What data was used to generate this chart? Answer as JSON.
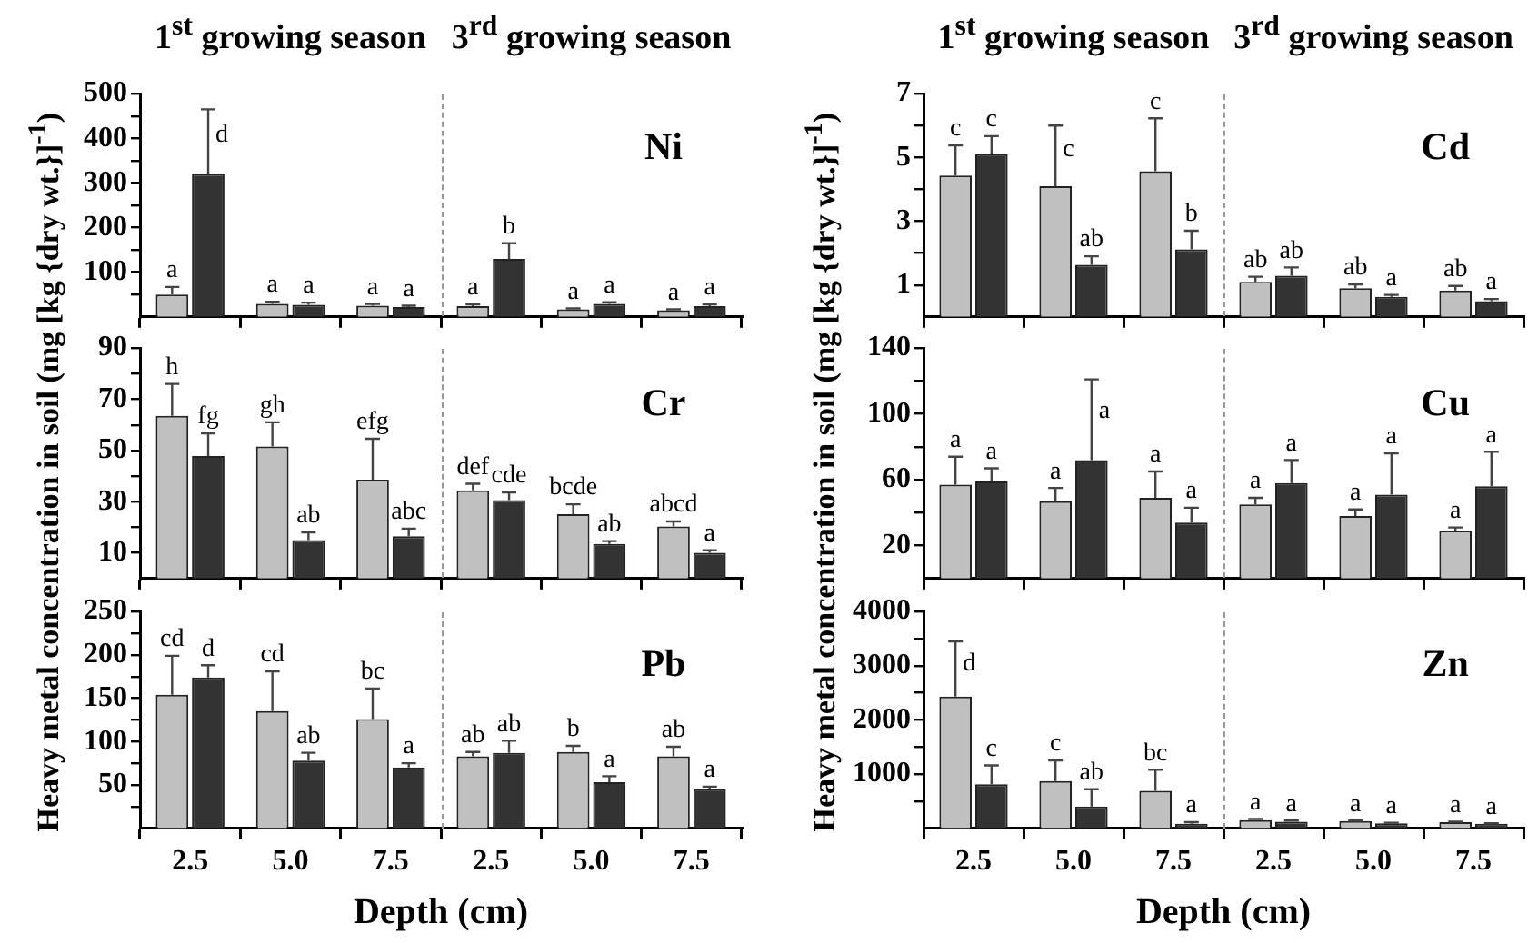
{
  "chart_data": [
    {
      "type": "bar",
      "title": "Ni",
      "annotations": [
        "1$^{st}$ growing season",
        "3$^{rd}$ growing season"
      ],
      "categories": [
        "2.5",
        "5.0",
        "7.5",
        "2.5",
        "5.0",
        "7.5"
      ],
      "ylim": [
        0,
        500
      ],
      "yticks": [
        {
          "value": 50,
          "label": null
        },
        100,
        {
          "value": 150,
          "label": null
        },
        200,
        {
          "value": 250,
          "label": null
        },
        300,
        {
          "value": 350,
          "label": null
        },
        400,
        {
          "value": 450,
          "label": null
        },
        500
      ],
      "tick_labels": "y",
      "series": [
        {
          "color": "#c0c0c0",
          "values": [
            50,
            29,
            25,
            24,
            17,
            15
          ],
          "errors": [
            [
              50,
              67
            ],
            [
              29,
              34
            ],
            [
              25,
              29
            ],
            [
              24,
              28
            ],
            [
              17,
              19
            ],
            [
              15,
              17
            ]
          ],
          "value_labels": [
            "a",
            "a",
            "a",
            "a",
            "a",
            "a"
          ]
        },
        {
          "color": "#333333",
          "values": [
            320,
            27,
            22,
            130,
            29,
            24
          ],
          "errors": [
            [
              320,
              465
            ],
            [
              27,
              32
            ],
            [
              22,
              25
            ],
            [
              130,
              165
            ],
            [
              29,
              33
            ],
            [
              24,
              28
            ]
          ],
          "value_labels": [
            "d",
            "a",
            "a",
            "b",
            "a",
            "a"
          ]
        }
      ]
    },
    {
      "type": "bar",
      "title": "Cd",
      "annotations": [
        "1$^{st}$ growing season",
        "3$^{rd}$ growing season"
      ],
      "categories": [
        "2.5",
        "5.0",
        "7.5",
        "2.5",
        "5.0",
        "7.5"
      ],
      "ylim": [
        0,
        7
      ],
      "yticks": [
        1,
        {
          "value": 2,
          "label": null
        },
        3,
        {
          "value": 4,
          "label": null
        },
        5,
        {
          "value": 6,
          "label": null
        },
        7
      ],
      "tick_labels": "y",
      "series": [
        {
          "color": "#c0c0c0",
          "values": [
            4.43,
            4.1,
            4.57,
            1.1,
            0.9,
            0.83
          ],
          "errors": [
            [
              4.43,
              5.38
            ],
            [
              4.1,
              6.0
            ],
            [
              4.57,
              6.23
            ],
            [
              1.1,
              1.26
            ],
            [
              0.9,
              1.02
            ],
            [
              0.83,
              0.97
            ]
          ],
          "value_labels": [
            "c",
            "c",
            "c",
            "ab",
            "ab",
            "ab"
          ]
        },
        {
          "color": "#333333",
          "values": [
            5.1,
            1.63,
            2.12,
            1.29,
            0.63,
            0.49
          ],
          "errors": [
            [
              5.1,
              5.67
            ],
            [
              1.63,
              1.9
            ],
            [
              2.12,
              2.7
            ],
            [
              1.29,
              1.55
            ],
            [
              0.63,
              0.69
            ],
            [
              0.49,
              0.56
            ]
          ],
          "value_labels": [
            "c",
            "ab",
            "b",
            "ab",
            "a",
            "a"
          ]
        }
      ]
    },
    {
      "type": "bar",
      "title": "Cr",
      "ylabel": "Heavy metal concentration in soil (mg [kg {dry wt.}]$^{-1}$)",
      "categories": [
        "2.5",
        "5.0",
        "7.5",
        "2.5",
        "5.0",
        "7.5"
      ],
      "ylim": [
        0,
        90
      ],
      "yticks": [
        10,
        {
          "value": 20,
          "label": null
        },
        30,
        {
          "value": 40,
          "label": null
        },
        50,
        {
          "value": 60,
          "label": null
        },
        70,
        {
          "value": 80,
          "label": null
        },
        90
      ],
      "tick_labels": "y",
      "series": [
        {
          "color": "#c0c0c0",
          "values": [
            63.5,
            51.6,
            38.6,
            34.4,
            25.1,
            20.3
          ],
          "errors": [
            [
              63.5,
              76
            ],
            [
              51.6,
              61
            ],
            [
              38.6,
              54.6
            ],
            [
              34.4,
              37
            ],
            [
              25.1,
              29
            ],
            [
              20.3,
              22.3
            ]
          ],
          "value_labels": [
            "h",
            "gh",
            "efg",
            "def",
            "bcde",
            "abcd"
          ]
        },
        {
          "color": "#333333",
          "values": [
            47.8,
            15,
            16.5,
            30.6,
            13.5,
            10
          ],
          "errors": [
            [
              47.8,
              56.7
            ],
            [
              15,
              18
            ],
            [
              16.5,
              19.5
            ],
            [
              30.6,
              33.6
            ],
            [
              13.5,
              14.6
            ],
            [
              10,
              11
            ]
          ],
          "value_labels": [
            "fg",
            "ab",
            "abc",
            "cde",
            "ab",
            "a"
          ]
        }
      ]
    },
    {
      "type": "bar",
      "title": "Cu",
      "ylabel": "Heavy metal concentration in soil (mg [kg {dry wt.}]$^{-1}$)",
      "categories": [
        "2.5",
        "5.0",
        "7.5",
        "2.5",
        "5.0",
        "7.5"
      ],
      "ylim": [
        0,
        140
      ],
      "yticks": [
        20,
        {
          "value": 40,
          "label": null
        },
        60,
        {
          "value": 80,
          "label": null
        },
        100,
        {
          "value": 120,
          "label": null
        },
        140
      ],
      "tick_labels": "y",
      "series": [
        {
          "color": "#c0c0c0",
          "values": [
            57,
            47,
            49,
            45,
            38,
            29
          ],
          "errors": [
            [
              57,
              74
            ],
            [
              47,
              55
            ],
            [
              49,
              65
            ],
            [
              45,
              49
            ],
            [
              38,
              42
            ],
            [
              29,
              31
            ]
          ],
          "value_labels": [
            "a",
            "a",
            "a",
            "a",
            "a",
            "a"
          ]
        },
        {
          "color": "#333333",
          "values": [
            59,
            72,
            34,
            58,
            51,
            56
          ],
          "errors": [
            [
              59,
              67
            ],
            [
              72,
              121
            ],
            [
              34,
              43
            ],
            [
              58,
              72
            ],
            [
              51,
              76
            ],
            [
              56,
              77
            ]
          ],
          "value_labels": [
            "a",
            "a",
            "a",
            "a",
            "a",
            "a"
          ]
        }
      ]
    },
    {
      "type": "bar",
      "title": "Pb",
      "xlabel": "Depth (cm)",
      "categories": [
        "2.5",
        "5.0",
        "7.5",
        "2.5",
        "5.0",
        "7.5"
      ],
      "ylim": [
        0,
        250
      ],
      "yticks": [
        {
          "value": 25,
          "label": null
        },
        50,
        {
          "value": 75,
          "label": null
        },
        100,
        {
          "value": 125,
          "label": null
        },
        150,
        {
          "value": 175,
          "label": null
        },
        200,
        {
          "value": 225,
          "label": null
        },
        250
      ],
      "series": [
        {
          "color": "#c0c0c0",
          "values": [
            154,
            135,
            126,
            83,
            88,
            83
          ],
          "errors": [
            [
              154,
              199
            ],
            [
              135,
              181
            ],
            [
              126,
              161
            ],
            [
              83,
              88
            ],
            [
              88,
              95
            ],
            [
              83,
              94
            ]
          ],
          "value_labels": [
            "cd",
            "cd",
            "bc",
            "ab",
            "b",
            "ab"
          ]
        },
        {
          "color": "#333333",
          "values": [
            174,
            78,
            70,
            87,
            53,
            45
          ],
          "errors": [
            [
              174,
              188
            ],
            [
              78,
              87
            ],
            [
              70,
              75
            ],
            [
              87,
              101
            ],
            [
              53,
              60
            ],
            [
              45,
              48
            ]
          ],
          "value_labels": [
            "d",
            "ab",
            "a",
            "ab",
            "a",
            "a"
          ]
        }
      ]
    },
    {
      "type": "bar",
      "title": "Zn",
      "xlabel": "Depth (cm)",
      "categories": [
        "2.5",
        "5.0",
        "7.5",
        "2.5",
        "5.0",
        "7.5"
      ],
      "ylim": [
        0,
        4000
      ],
      "yticks": [
        {
          "value": 500,
          "label": null
        },
        1000,
        {
          "value": 1500,
          "label": null
        },
        2000,
        {
          "value": 2500,
          "label": null
        },
        3000,
        {
          "value": 3500,
          "label": null
        },
        4000
      ],
      "series": [
        {
          "color": "#c0c0c0",
          "values": [
            2430,
            870,
            690,
            150,
            130,
            110
          ],
          "errors": [
            [
              2430,
              3450
            ],
            [
              870,
              1250
            ],
            [
              690,
              1080
            ],
            [
              150,
              170
            ],
            [
              130,
              140
            ],
            [
              110,
              120
            ]
          ],
          "value_labels": [
            "d",
            "c",
            "bc",
            "a",
            "a",
            "a"
          ]
        },
        {
          "color": "#333333",
          "values": [
            810,
            400,
            80,
            120,
            90,
            80
          ],
          "errors": [
            [
              810,
              1160
            ],
            [
              400,
              720
            ],
            [
              80,
              110
            ],
            [
              120,
              140
            ],
            [
              90,
              100
            ],
            [
              80,
              90
            ]
          ],
          "value_labels": [
            "c",
            "ab",
            "a",
            "a",
            "a",
            "a"
          ]
        }
      ]
    }
  ]
}
